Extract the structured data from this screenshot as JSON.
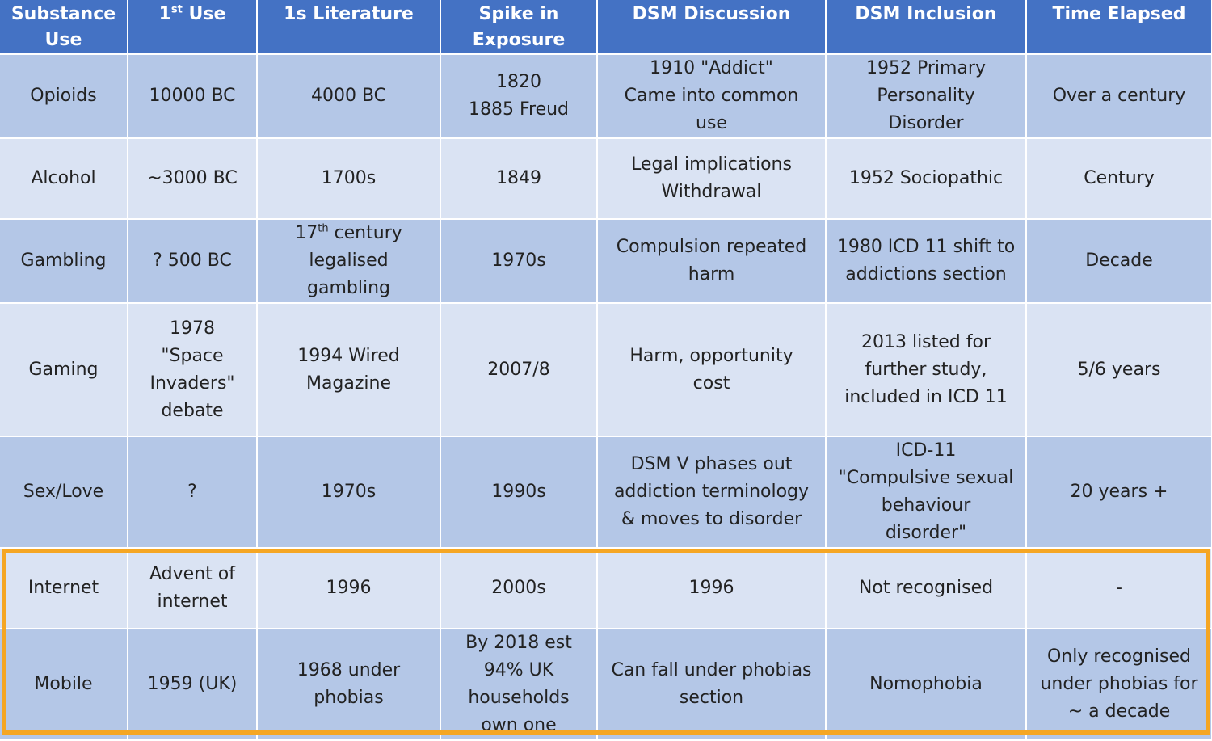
{
  "headers": {
    "substance": "Substance Use",
    "first_use": "1",
    "first_use_sup": "st",
    "first_use_rest": " Use",
    "literature": "1s Literature",
    "spike": "Spike in Exposure",
    "dsm_discussion": "DSM Discussion",
    "dsm_inclusion": "DSM Inclusion",
    "time_elapsed": "Time Elapsed"
  },
  "rows": [
    {
      "substance": "Opioids",
      "first_use": "10000 BC",
      "literature": "4000 BC",
      "spike": "1820\n1885 Freud",
      "dsm_discussion": "1910 \"Addict\"\nCame into common\nuse",
      "dsm_inclusion": "1952 Primary\nPersonality\nDisorder",
      "time_elapsed": "Over a century"
    },
    {
      "substance": "Alcohol",
      "first_use": "~3000 BC",
      "literature": "1700s",
      "spike": "1849",
      "dsm_discussion": "Legal implications\nWithdrawal",
      "dsm_inclusion": "1952 Sociopathic",
      "time_elapsed": "Century"
    },
    {
      "substance": "Gambling",
      "first_use": "? 500 BC",
      "literature_pre": "17",
      "literature_sup": "th",
      "literature_post": " century\nlegalised\ngambling",
      "spike": "1970s",
      "dsm_discussion": "Compulsion repeated\nharm",
      "dsm_inclusion": "1980 ICD 11 shift to\naddictions section",
      "time_elapsed": "Decade"
    },
    {
      "substance": "Gaming",
      "first_use": "1978\n\"Space\nInvaders\"\ndebate",
      "literature": "1994 Wired\nMagazine",
      "spike": "2007/8",
      "dsm_discussion": "Harm, opportunity\ncost",
      "dsm_inclusion": "2013 listed for\nfurther study,\nincluded in ICD 11",
      "time_elapsed": "5/6 years"
    },
    {
      "substance": "Sex/Love",
      "first_use": "?",
      "literature": "1970s",
      "spike": "1990s",
      "dsm_discussion": "DSM V phases out\naddiction terminology\n& moves to disorder",
      "dsm_inclusion": "ICD-11\n\"Compulsive sexual\nbehaviour\ndisorder\"",
      "time_elapsed": "20 years +"
    },
    {
      "substance": "Internet",
      "first_use": "Advent of\ninternet",
      "literature": "1996",
      "spike": "2000s",
      "dsm_discussion": "1996",
      "dsm_inclusion": "Not recognised",
      "time_elapsed": "-"
    },
    {
      "substance": "Mobile",
      "first_use": "1959 (UK)",
      "literature": "1968 under\nphobias",
      "spike": "By 2018 est\n94% UK\nhouseholds\nown one",
      "dsm_discussion": "Can fall under phobias\nsection",
      "dsm_inclusion": "Nomophobia",
      "time_elapsed": "Only recognised\nunder phobias for\n~ a decade"
    }
  ],
  "colors": {
    "header_bg": "#4472c4",
    "row_shaded": "#b4c7e7",
    "row_light": "#dae3f3",
    "highlight_border": "#f5a623"
  }
}
